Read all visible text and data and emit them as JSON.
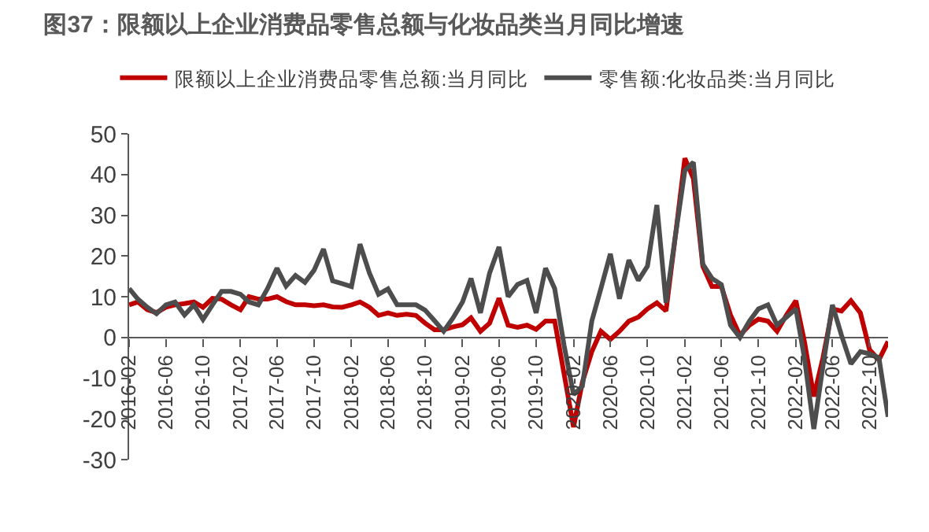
{
  "chart_data": {
    "type": "line",
    "title": "图37：限额以上企业消费品零售总额与化妆品类当月同比增速",
    "x": [
      "2016-02",
      "2016-03",
      "2016-04",
      "2016-05",
      "2016-06",
      "2016-07",
      "2016-08",
      "2016-09",
      "2016-10",
      "2016-11",
      "2016-12",
      "2017-01",
      "2017-02",
      "2017-03",
      "2017-04",
      "2017-05",
      "2017-06",
      "2017-07",
      "2017-08",
      "2017-09",
      "2017-10",
      "2017-11",
      "2017-12",
      "2018-01",
      "2018-02",
      "2018-03",
      "2018-04",
      "2018-05",
      "2018-06",
      "2018-07",
      "2018-08",
      "2018-09",
      "2018-10",
      "2018-11",
      "2018-12",
      "2019-01",
      "2019-02",
      "2019-03",
      "2019-04",
      "2019-05",
      "2019-06",
      "2019-07",
      "2019-08",
      "2019-09",
      "2019-10",
      "2019-11",
      "2019-12",
      "2020-01",
      "2020-02",
      "2020-03",
      "2020-04",
      "2020-05",
      "2020-06",
      "2020-07",
      "2020-08",
      "2020-09",
      "2020-10",
      "2020-11",
      "2020-12",
      "2021-01",
      "2021-02",
      "2021-03",
      "2021-04",
      "2021-05",
      "2021-06",
      "2021-07",
      "2021-08",
      "2021-09",
      "2021-10",
      "2021-11",
      "2021-12",
      "2022-01",
      "2022-02",
      "2022-03",
      "2022-04",
      "2022-05",
      "2022-06",
      "2022-07",
      "2022-08",
      "2022-09",
      "2022-10",
      "2022-11",
      "2022-12"
    ],
    "series": [
      {
        "name": "限额以上企业消费品零售总额:当月同比",
        "color": "#c00000",
        "values": [
          8,
          8.7,
          6.8,
          6.1,
          7.4,
          8,
          8.3,
          8.7,
          7.4,
          9.6,
          9.4,
          8,
          6.8,
          10,
          9.4,
          9.4,
          10,
          8.8,
          8,
          8,
          7.8,
          8,
          7.5,
          7.4,
          8,
          8.7,
          7.4,
          5.4,
          6,
          5.4,
          5.7,
          5.4,
          3.5,
          1.9,
          1.9,
          2.6,
          3.1,
          4.8,
          1.5,
          3.5,
          9.6,
          3,
          2.5,
          3,
          2,
          4,
          4,
          -9,
          -22,
          -11,
          -3.5,
          1.5,
          -0.5,
          1.5,
          4,
          5,
          7,
          8.5,
          6.5,
          25,
          44,
          39,
          17.5,
          12.5,
          12.5,
          5.5,
          0.5,
          3,
          4.5,
          4,
          1.5,
          5.5,
          9,
          -1,
          -14.5,
          -5,
          7,
          6.5,
          9,
          6,
          -3,
          -5.5,
          -1
        ]
      },
      {
        "name": "零售额:化妆品类:当月同比",
        "color": "#4d4d4d",
        "values": [
          12,
          9.4,
          7.4,
          5.8,
          8,
          8.7,
          5.5,
          8,
          4.4,
          8,
          11.3,
          11.3,
          10.6,
          8.7,
          8,
          12,
          17,
          12.6,
          15.2,
          13.5,
          16.5,
          21.7,
          13.9,
          13.2,
          12.5,
          22.9,
          15.8,
          10.6,
          11.9,
          8,
          8,
          8,
          6.7,
          4.1,
          1.5,
          4.8,
          8.7,
          14.5,
          6,
          15.8,
          22.2,
          10,
          13,
          14,
          6,
          17,
          12,
          -2,
          -14,
          -12,
          4,
          12,
          20.5,
          9.5,
          19,
          14,
          17.5,
          32.5,
          8.5,
          25,
          41,
          43,
          18,
          14.5,
          13,
          3,
          0,
          4,
          7,
          8,
          3,
          5,
          7,
          -5,
          -22.5,
          -7,
          8,
          0.5,
          -6.5,
          -3.5,
          -4,
          -5,
          -19.5
        ]
      }
    ],
    "xlim": [
      "2016-02",
      "2022-12"
    ],
    "xticks": [
      "2016-02",
      "2016-06",
      "2016-10",
      "2017-02",
      "2017-06",
      "2017-10",
      "2018-02",
      "2018-06",
      "2018-10",
      "2019-02",
      "2019-06",
      "2019-10",
      "2020-02",
      "2020-06",
      "2020-10",
      "2021-02",
      "2021-06",
      "2021-10",
      "2022-02",
      "2022-06",
      "2022-10"
    ],
    "ylim": [
      -30,
      50
    ],
    "yticks": [
      -30,
      -20,
      -10,
      0,
      10,
      20,
      30,
      40,
      50
    ],
    "grid": false,
    "legend": "top",
    "marker": "none",
    "line_style": "solid"
  }
}
